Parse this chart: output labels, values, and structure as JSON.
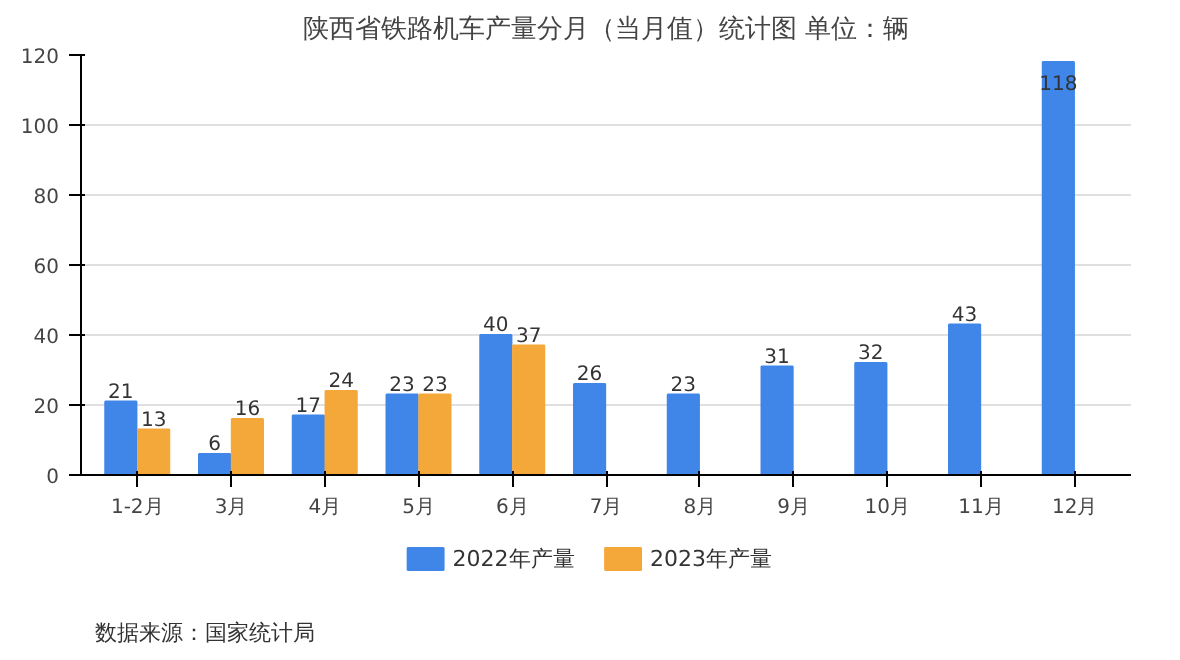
{
  "chart_data": {
    "type": "bar",
    "title": "陕西省铁路机车产量分月（当月值）统计图 单位：辆",
    "categories": [
      "1-2月",
      "3月",
      "4月",
      "5月",
      "6月",
      "7月",
      "8月",
      "9月",
      "10月",
      "11月",
      "12月"
    ],
    "series": [
      {
        "name": "2022年产量",
        "color": "#3f86e8",
        "values": [
          21,
          6,
          17,
          23,
          40,
          26,
          23,
          31,
          32,
          43,
          118
        ]
      },
      {
        "name": "2023年产量",
        "color": "#f5a83a",
        "values": [
          13,
          16,
          24,
          23,
          37,
          null,
          null,
          null,
          null,
          null,
          null
        ]
      }
    ],
    "ylim": [
      0,
      120
    ],
    "yticks": [
      0,
      20,
      40,
      60,
      80,
      100,
      120
    ],
    "grid": "y",
    "legend": "bottom",
    "data_labels": true,
    "annotations": [
      "数据来源：国家统计局"
    ]
  }
}
